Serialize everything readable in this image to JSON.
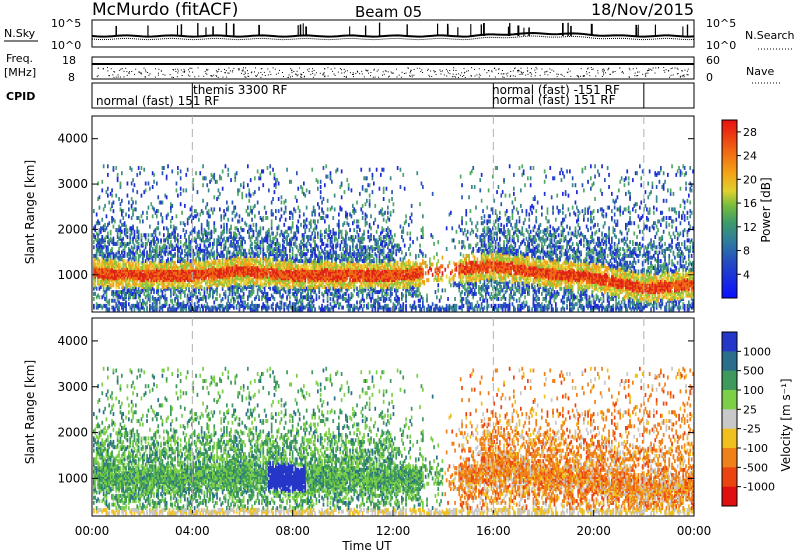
{
  "header": {
    "station": "McMurdo (fitACF)",
    "beam": "Beam 05",
    "date": "18/Nov/2015"
  },
  "noise_panel": {
    "left_label": "N.Sky",
    "right_label": "N.Search",
    "left_ticks": [
      "10^5",
      "10^0"
    ],
    "right_ticks": [
      "10^5",
      "10^0"
    ]
  },
  "freq_panel": {
    "left_label_1": "Freq.",
    "left_label_2": "[MHz]",
    "right_label": "Nave",
    "left_ticks": [
      "18",
      "8"
    ],
    "right_ticks": [
      "60",
      "0"
    ]
  },
  "cpid": {
    "label": "CPID",
    "segments": [
      {
        "text": "normal (fast) 151 RF",
        "row": 2,
        "start_h": 0.0
      },
      {
        "text": "themis 3300 RF",
        "row": 1,
        "start_h": 4.0
      },
      {
        "text": "normal (fast) -151 RF",
        "row": 1,
        "start_h": 16.0
      },
      {
        "text": "normal (fast) 151 RF",
        "row": 2,
        "start_h": 16.0
      }
    ],
    "transition_hours": [
      4.0,
      16.0,
      22.0
    ]
  },
  "chart_data": [
    {
      "type": "heatmap",
      "title": "Power",
      "xlabel": "",
      "ylabel": "Slant Range [km]",
      "x_unit": "hours UT",
      "xlim": [
        0,
        24
      ],
      "ylim": [
        180,
        4500
      ],
      "yticks": [
        1000,
        2000,
        3000,
        4000
      ],
      "colorbar": {
        "label": "Power [dB]",
        "ticks": [
          4,
          8,
          12,
          16,
          20,
          24,
          28
        ],
        "range": [
          0,
          30
        ]
      },
      "main_echo_band": [
        {
          "t": 0.0,
          "r": 1050
        },
        {
          "t": 2.0,
          "r": 1000
        },
        {
          "t": 4.0,
          "r": 1000
        },
        {
          "t": 6.0,
          "r": 1100
        },
        {
          "t": 8.0,
          "r": 1000
        },
        {
          "t": 10.0,
          "r": 1000
        },
        {
          "t": 12.0,
          "r": 1000
        },
        {
          "t": 14.0,
          "r": 1100
        },
        {
          "t": 16.0,
          "r": 1200
        },
        {
          "t": 18.0,
          "r": 1050
        },
        {
          "t": 20.0,
          "r": 950
        },
        {
          "t": 22.0,
          "r": 700
        },
        {
          "t": 24.0,
          "r": 800
        }
      ]
    },
    {
      "type": "heatmap",
      "title": "Velocity",
      "xlabel": "Time UT",
      "ylabel": "Slant Range [km]",
      "xlim": [
        0,
        24
      ],
      "ylim": [
        180,
        4500
      ],
      "yticks": [
        1000,
        2000,
        3000,
        4000
      ],
      "xticks": [
        "00:00",
        "04:00",
        "08:00",
        "12:00",
        "16:00",
        "20:00",
        "00:00"
      ],
      "colorbar": {
        "label": "Velocity [m s⁻¹]",
        "ticks": [
          "1000",
          "500",
          "100",
          "25",
          "-25",
          "-100",
          "-500",
          "-1000"
        ]
      },
      "dominant_sign_by_time": [
        {
          "from_h": 0,
          "to_h": 14,
          "sign": "positive (green)"
        },
        {
          "from_h": 14,
          "to_h": 24,
          "sign": "negative (orange)"
        }
      ]
    }
  ],
  "colors": {
    "power_scale": [
      "#1e2cd8",
      "#2a55b8",
      "#3b8a8a",
      "#52a863",
      "#8cc63e",
      "#e8d43c",
      "#f4a21a",
      "#ef6a14",
      "#e02318"
    ],
    "velocity_scale": [
      "#2437c8",
      "#2a6e8c",
      "#3d9a5c",
      "#7cd048",
      "#c8c8c8",
      "#f0c020",
      "#f08018",
      "#ec4410",
      "#e01010"
    ],
    "dashed_lines": "#b0b0b0"
  }
}
